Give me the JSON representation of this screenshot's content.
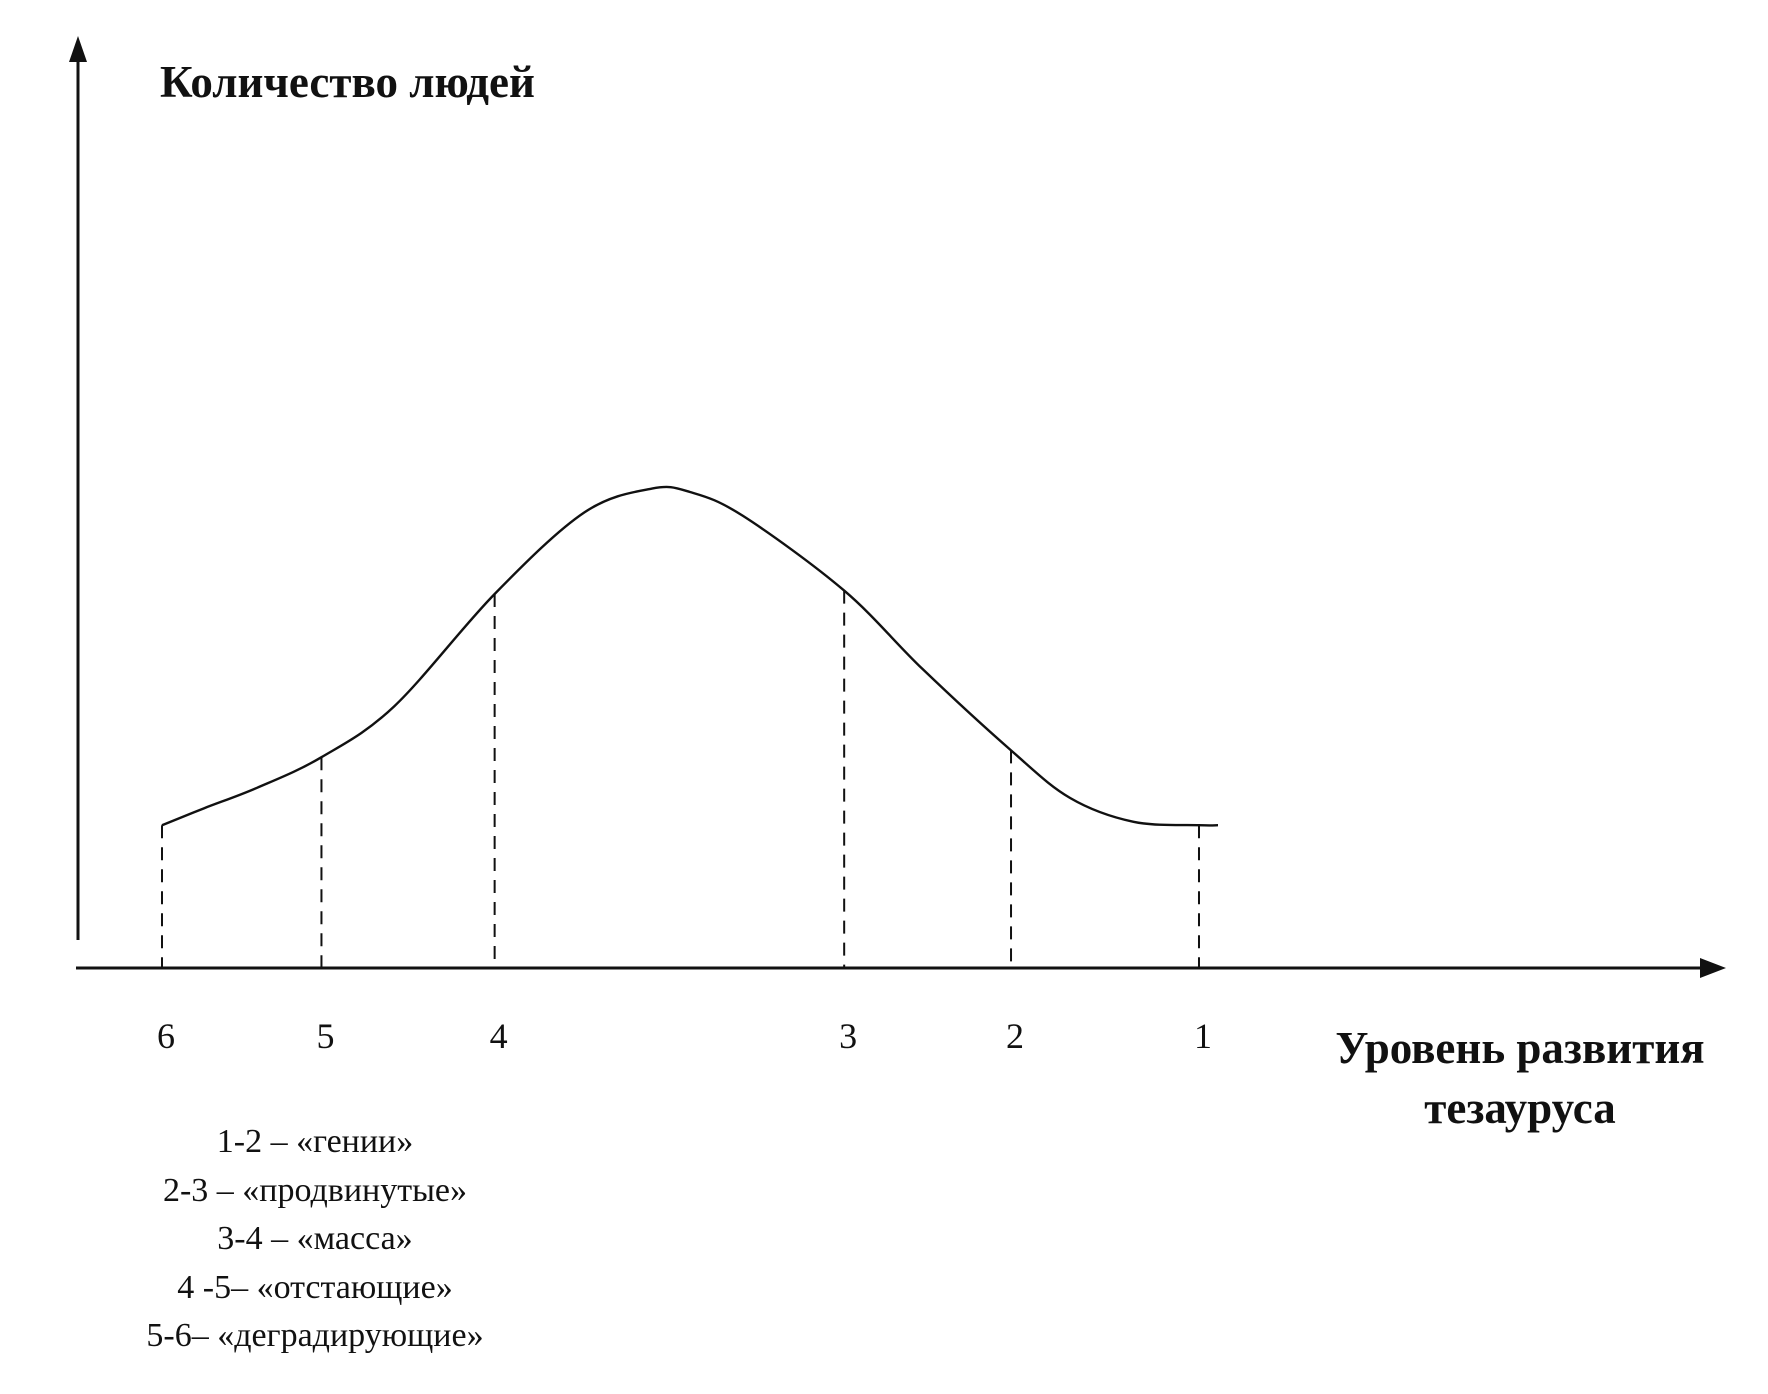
{
  "chart_data": {
    "type": "line",
    "ylabel": "Количество людей",
    "xlabel": [
      "Уровень развития",
      "тезауруса"
    ],
    "ticks": [
      {
        "label": "6",
        "pos": 0
      },
      {
        "label": "5",
        "pos": 0.151
      },
      {
        "label": "4",
        "pos": 0.315
      },
      {
        "label": "3",
        "pos": 0.646
      },
      {
        "label": "2",
        "pos": 0.804
      },
      {
        "label": "1",
        "pos": 0.982
      }
    ],
    "curve": {
      "x": [
        0,
        0.04,
        0.09,
        0.151,
        0.22,
        0.315,
        0.4,
        0.464,
        0.5,
        0.55,
        0.646,
        0.72,
        0.804,
        0.86,
        0.92,
        0.982,
        1.0
      ],
      "y": [
        0.21,
        0.235,
        0.265,
        0.31,
        0.385,
        0.55,
        0.67,
        0.705,
        0.7,
        0.665,
        0.555,
        0.44,
        0.32,
        0.25,
        0.215,
        0.21,
        0.21
      ]
    },
    "grid": false,
    "legend": [
      "1-2 – «гении»",
      "2-3 – «продвинутые»",
      "3-4 – «масса»",
      "4 -5– «отстающие»",
      "5-6– «деградирующие»"
    ]
  }
}
